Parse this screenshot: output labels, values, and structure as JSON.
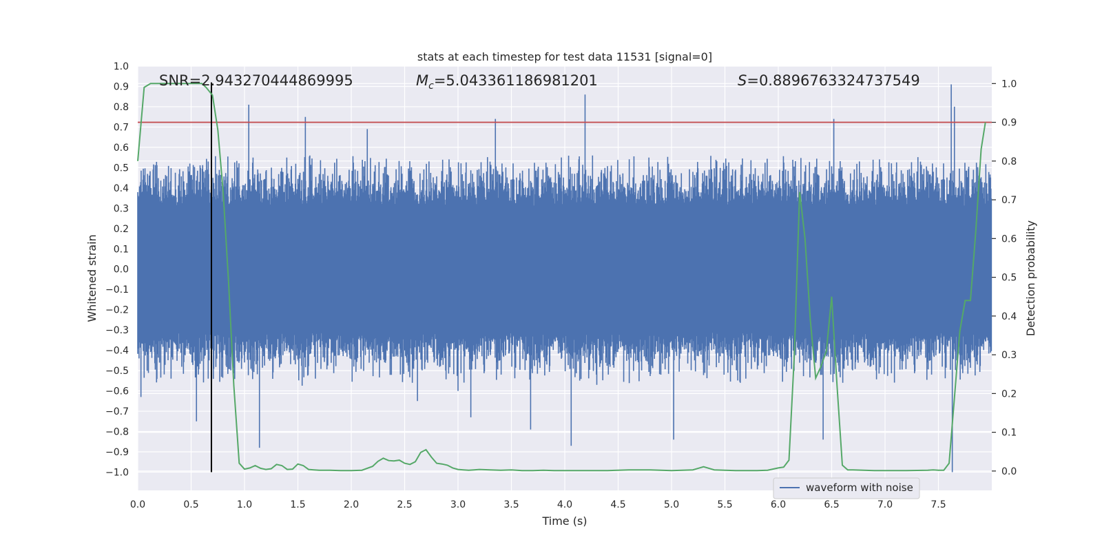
{
  "chart_data": {
    "type": "line",
    "title": "stats at each timestep for test data 11531 [signal=0]",
    "xlabel": "Time (s)",
    "ylabel_left": "Whitened strain",
    "ylabel_right": "Detection probability",
    "xlim": [
      0,
      8
    ],
    "ylim_left": [
      -1.09,
      1.0
    ],
    "ylim_right": [
      -0.05,
      1.045
    ],
    "x_ticks": [
      "0.0",
      "0.5",
      "1.0",
      "1.5",
      "2.0",
      "2.5",
      "3.0",
      "3.5",
      "4.0",
      "4.5",
      "5.0",
      "5.5",
      "6.0",
      "6.5",
      "7.0",
      "7.5"
    ],
    "y_ticks_left": [
      "1.0",
      "0.9",
      "0.8",
      "0.7",
      "0.6",
      "0.5",
      "0.4",
      "0.3",
      "0.2",
      "0.1",
      "0.0",
      "−0.1",
      "−0.2",
      "−0.3",
      "−0.4",
      "−0.5",
      "−0.6",
      "−0.7",
      "−0.8",
      "−0.9",
      "−1.0"
    ],
    "y_tick_values_left": [
      1.0,
      0.9,
      0.8,
      0.7,
      0.6,
      0.5,
      0.4,
      0.3,
      0.2,
      0.1,
      0.0,
      -0.1,
      -0.2,
      -0.3,
      -0.4,
      -0.5,
      -0.6,
      -0.7,
      -0.8,
      -0.9,
      -1.0
    ],
    "y_ticks_right": [
      "1.0",
      "0.9",
      "0.8",
      "0.7",
      "0.6",
      "0.5",
      "0.4",
      "0.3",
      "0.2",
      "0.1",
      "0.0"
    ],
    "y_tick_values_right": [
      1.0,
      0.9,
      0.8,
      0.7,
      0.6,
      0.5,
      0.4,
      0.3,
      0.2,
      0.1,
      0.0
    ],
    "annotations": {
      "snr": "SNR=2.943270444869995",
      "mc_symbol": "M",
      "mc_sub": "c",
      "mc_value": "=5.043361186981201",
      "s_symbol": "S",
      "s_value": "=0.8896763324737549"
    },
    "legend": {
      "label": "waveform with noise",
      "position": "lower-right"
    },
    "threshold_right": 0.9,
    "vertical_marker_x": 0.69,
    "vertical_marker_range": [
      -1.0,
      0.92
    ],
    "waveform": {
      "name": "waveform with noise",
      "samples": 2000,
      "core_amplitude": 0.31,
      "typical_max": 0.55,
      "seed": 11531,
      "spikes": [
        {
          "t": 0.66,
          "v": 0.53
        },
        {
          "t": 1.04,
          "v": 0.81
        },
        {
          "t": 1.57,
          "v": 0.75
        },
        {
          "t": 2.15,
          "v": 0.69
        },
        {
          "t": 3.35,
          "v": 0.74
        },
        {
          "t": 4.19,
          "v": 0.86
        },
        {
          "t": 6.52,
          "v": 0.74
        },
        {
          "t": 7.62,
          "v": 0.91
        },
        {
          "t": 7.65,
          "v": 0.8
        },
        {
          "t": 1.14,
          "v": -0.88
        },
        {
          "t": 3.68,
          "v": -0.79
        },
        {
          "t": 4.06,
          "v": -0.87
        },
        {
          "t": 5.02,
          "v": -0.84
        },
        {
          "t": 6.42,
          "v": -0.84
        },
        {
          "t": 7.63,
          "v": -1.0
        },
        {
          "t": 0.55,
          "v": -0.75
        },
        {
          "t": 0.69,
          "v": -0.65
        },
        {
          "t": 3.12,
          "v": -0.73
        },
        {
          "t": 2.62,
          "v": -0.65
        },
        {
          "t": 3.0,
          "v": -0.6
        },
        {
          "t": 0.03,
          "v": -0.63
        }
      ]
    },
    "detection_probability": {
      "name": "detection probability",
      "x": [
        0,
        0.06,
        0.12,
        0.2,
        0.3,
        0.4,
        0.5,
        0.6,
        0.64,
        0.7,
        0.75,
        0.8,
        0.85,
        0.9,
        0.95,
        1.0,
        1.05,
        1.1,
        1.15,
        1.2,
        1.25,
        1.3,
        1.35,
        1.4,
        1.45,
        1.5,
        1.55,
        1.6,
        1.65,
        1.7,
        1.75,
        1.8,
        1.9,
        2.0,
        2.1,
        2.2,
        2.25,
        2.3,
        2.35,
        2.4,
        2.45,
        2.5,
        2.55,
        2.6,
        2.65,
        2.7,
        2.75,
        2.8,
        2.85,
        2.9,
        2.95,
        3.0,
        3.05,
        3.1,
        3.15,
        3.2,
        3.3,
        3.4,
        3.5,
        3.6,
        3.7,
        3.8,
        3.9,
        4.0,
        4.2,
        4.4,
        4.6,
        4.8,
        5.0,
        5.1,
        5.2,
        5.3,
        5.4,
        5.6,
        5.8,
        5.9,
        6.0,
        6.05,
        6.1,
        6.15,
        6.2,
        6.25,
        6.3,
        6.35,
        6.4,
        6.45,
        6.5,
        6.55,
        6.6,
        6.65,
        6.7,
        6.8,
        6.9,
        7.0,
        7.2,
        7.4,
        7.45,
        7.5,
        7.55,
        7.6,
        7.65,
        7.7,
        7.75,
        7.8,
        7.85,
        7.9,
        7.94
      ],
      "y": [
        0.8,
        0.99,
        1.0,
        1.0,
        1.0,
        1.0,
        1.0,
        1.0,
        0.99,
        0.97,
        0.88,
        0.72,
        0.49,
        0.22,
        0.02,
        0.005,
        0.008,
        0.014,
        0.007,
        0.004,
        0.006,
        0.017,
        0.014,
        0.004,
        0.005,
        0.018,
        0.014,
        0.004,
        0.003,
        0.002,
        0.002,
        0.002,
        0.001,
        0.001,
        0.002,
        0.012,
        0.025,
        0.033,
        0.027,
        0.026,
        0.028,
        0.02,
        0.017,
        0.024,
        0.048,
        0.055,
        0.036,
        0.02,
        0.018,
        0.015,
        0.008,
        0.004,
        0.003,
        0.002,
        0.003,
        0.004,
        0.003,
        0.002,
        0.003,
        0.001,
        0.001,
        0.002,
        0.001,
        0.001,
        0.001,
        0.001,
        0.003,
        0.003,
        0.001,
        0.002,
        0.003,
        0.011,
        0.003,
        0.001,
        0.001,
        0.002,
        0.008,
        0.01,
        0.028,
        0.3,
        0.72,
        0.6,
        0.39,
        0.24,
        0.27,
        0.31,
        0.45,
        0.22,
        0.015,
        0.003,
        0.003,
        0.002,
        0.001,
        0.001,
        0.001,
        0.002,
        0.003,
        0.002,
        0.002,
        0.02,
        0.19,
        0.36,
        0.44,
        0.44,
        0.62,
        0.83,
        0.9
      ]
    },
    "colors": {
      "waveform": "#4C72B0",
      "probability": "#55A868",
      "threshold": "#C44E52",
      "marker": "#000000",
      "plot_bg": "#EAEAF2",
      "grid": "#FFFFFF",
      "text": "#262626"
    }
  }
}
